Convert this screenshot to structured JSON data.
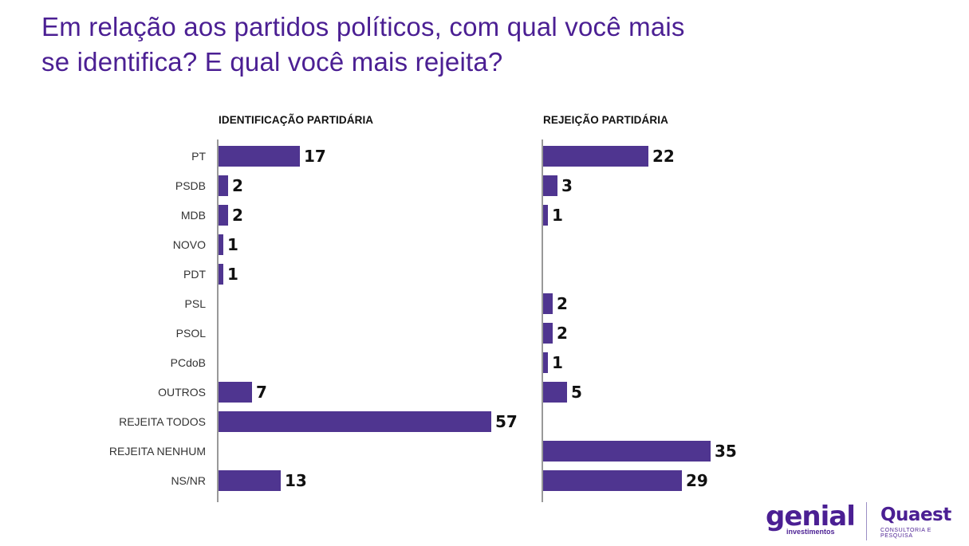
{
  "title": {
    "line1": "Em relação aos partidos políticos, com qual você mais",
    "line2": "se identifica? E qual você mais rejeita?"
  },
  "colors": {
    "bar": "#4f3590",
    "title": "#4b1f93",
    "axis": "#333333"
  },
  "logos": {
    "genial": "genial",
    "genial_sub": "investimentos",
    "quaest": "Quaest",
    "quaest_sub": "CONSULTORIA E PESQUISA"
  },
  "chart_data": [
    {
      "type": "bar",
      "orientation": "horizontal",
      "title": "IDENTIFICAÇÃO PARTIDÁRIA",
      "categories": [
        "PT",
        "PSDB",
        "MDB",
        "NOVO",
        "PDT",
        "PSL",
        "PSOL",
        "PCdoB",
        "OUTROS",
        "REJEITA TODOS",
        "REJEITA NENHUM",
        "NS/NR"
      ],
      "values": [
        17,
        2,
        2,
        1,
        1,
        null,
        null,
        null,
        7,
        57,
        null,
        13
      ]
    },
    {
      "type": "bar",
      "orientation": "horizontal",
      "title": "REJEIÇÃO PARTIDÁRIA",
      "categories": [
        "PT",
        "PSDB",
        "MDB",
        "NOVO",
        "PDT",
        "PSL",
        "PSOL",
        "PCdoB",
        "OUTROS",
        "REJEITA TODOS",
        "REJEITA NENHUM",
        "NS/NR"
      ],
      "values": [
        22,
        3,
        1,
        null,
        null,
        2,
        2,
        1,
        5,
        null,
        35,
        29
      ]
    }
  ]
}
